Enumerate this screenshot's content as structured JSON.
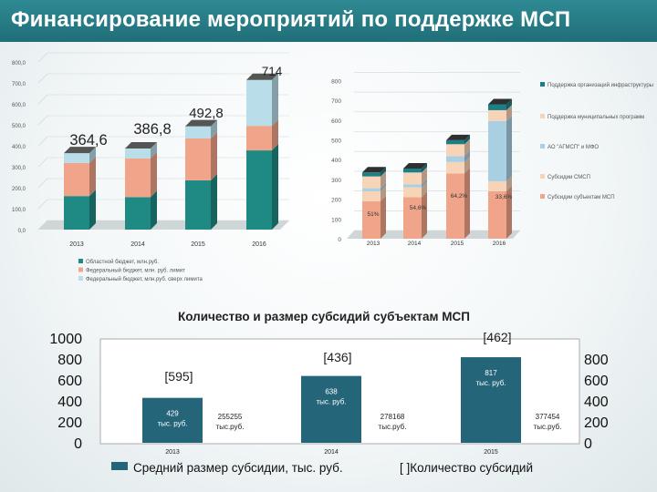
{
  "page": {
    "title": "Финансирование мероприятий по поддержке МСП"
  },
  "colors": {
    "banner": "#24767f",
    "teal": "#1f8a84",
    "salmon": "#f0a48a",
    "lightblue": "#b9dde9",
    "peach": "#f7d3b8",
    "sky": "#a9cfe3",
    "deepteal": "#1c7f84",
    "navy": "#25657a"
  },
  "chart_data": [
    {
      "type": "bar",
      "stacked": true,
      "categories": [
        "2013",
        "2014",
        "2015",
        "2016"
      ],
      "ylim": [
        0,
        800
      ],
      "yticks": [
        "0,0",
        "100,0",
        "200,0",
        "300,0",
        "400,0",
        "500,0",
        "600,0",
        "700,0",
        "800,0"
      ],
      "ytick_values": [
        0,
        100,
        200,
        300,
        400,
        500,
        600,
        700,
        800
      ],
      "totals": [
        "364,6",
        "386,8",
        "492,8",
        "714"
      ],
      "total_values": [
        364.6,
        386.8,
        492.8,
        714
      ],
      "series": [
        {
          "name": "Областной бюджет, млн.руб.",
          "color": "#1f8a84",
          "values": [
            160,
            155,
            235,
            378
          ]
        },
        {
          "name": "Федеральный бюджет, млн. руб. лимит",
          "color": "#f0a48a",
          "values": [
            158,
            185,
            200,
            117
          ]
        },
        {
          "name": "Федеральный бюджет, млн.руб. сверх лимита",
          "color": "#b9dde9",
          "values": [
            46.6,
            46.8,
            57.8,
            219
          ]
        }
      ]
    },
    {
      "type": "bar",
      "stacked": true,
      "categories": [
        "2013",
        "2014",
        "2015",
        "2016"
      ],
      "ylim": [
        0,
        800
      ],
      "yticks": [
        "0",
        "100",
        "200",
        "300",
        "400",
        "500",
        "600",
        "700",
        "800"
      ],
      "ytick_values": [
        0,
        100,
        200,
        300,
        400,
        500,
        600,
        700,
        800
      ],
      "annotations": [
        "51%",
        "54,6%",
        "64,2%",
        "33,6%"
      ],
      "series": [
        {
          "name": "Субсидии субъектам МСП",
          "color": "#f0a48a",
          "values": [
            190,
            210,
            330,
            240
          ]
        },
        {
          "name": "Субсидии СМСП",
          "color": "#f7d3b8",
          "values": [
            50,
            50,
            58,
            50
          ]
        },
        {
          "name": "АО \"АГМСП\" и МФО",
          "color": "#a9cfe3",
          "values": [
            15,
            15,
            30,
            305
          ]
        },
        {
          "name": "Поддержка муниципальных программ",
          "color": "#f7d3b8",
          "values": [
            60,
            60,
            60,
            55
          ]
        },
        {
          "name": "Поддержка организаций инфраструктуры",
          "color": "#1c7f84",
          "values": [
            20,
            20,
            20,
            30
          ]
        }
      ]
    },
    {
      "type": "bar",
      "title": "Количество и размер субсидий субъектам МСП",
      "categories": [
        "2013",
        "2014",
        "2015"
      ],
      "series": [
        {
          "name": "Средний размер субсидии, тыс. руб.",
          "color": "#25657a",
          "values": [
            429,
            638,
            817
          ]
        },
        {
          "name": "Количество субсидий",
          "values": [
            595,
            436,
            462
          ]
        }
      ],
      "bar_labels": [
        "429 тыс. руб.",
        "638 тыс. руб.",
        "817 тыс. руб."
      ],
      "count_labels": [
        "[595]",
        "[436]",
        "[462]"
      ],
      "totals_text": [
        "255255 тыс.руб.",
        "278168 тыс.руб.",
        "377454 тыс.руб."
      ],
      "left_axis": {
        "ylim": [
          0,
          1000
        ],
        "ticks": [
          "0",
          "200",
          "400",
          "600",
          "800",
          "1000"
        ]
      },
      "right_axis": {
        "ylim": [
          0,
          800
        ],
        "ticks": [
          "0",
          "200",
          "400",
          "600",
          "800"
        ]
      },
      "legend": [
        "Средний размер субсидии, тыс. руб.",
        "[ ]Количество субсидий"
      ]
    }
  ]
}
